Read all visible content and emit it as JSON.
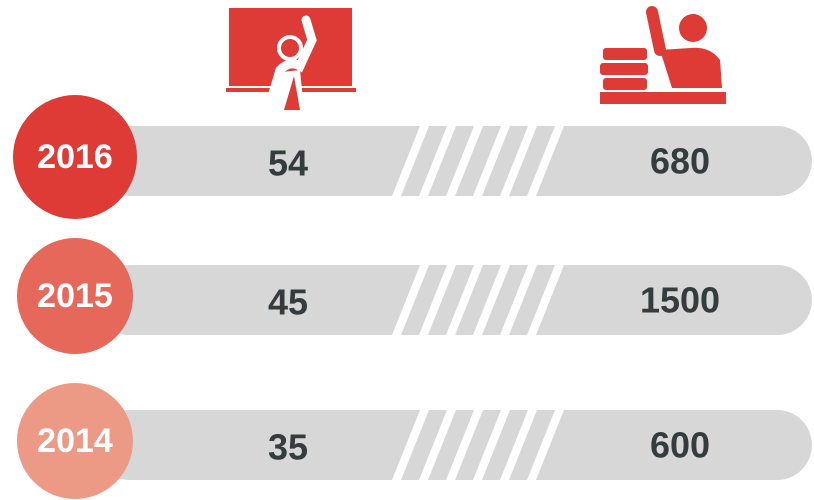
{
  "rows": [
    {
      "year": "2016",
      "teachers": "54",
      "students": "680"
    },
    {
      "year": "2015",
      "teachers": "45",
      "students": "1500"
    },
    {
      "year": "2014",
      "teachers": "35",
      "students": "600"
    }
  ]
}
